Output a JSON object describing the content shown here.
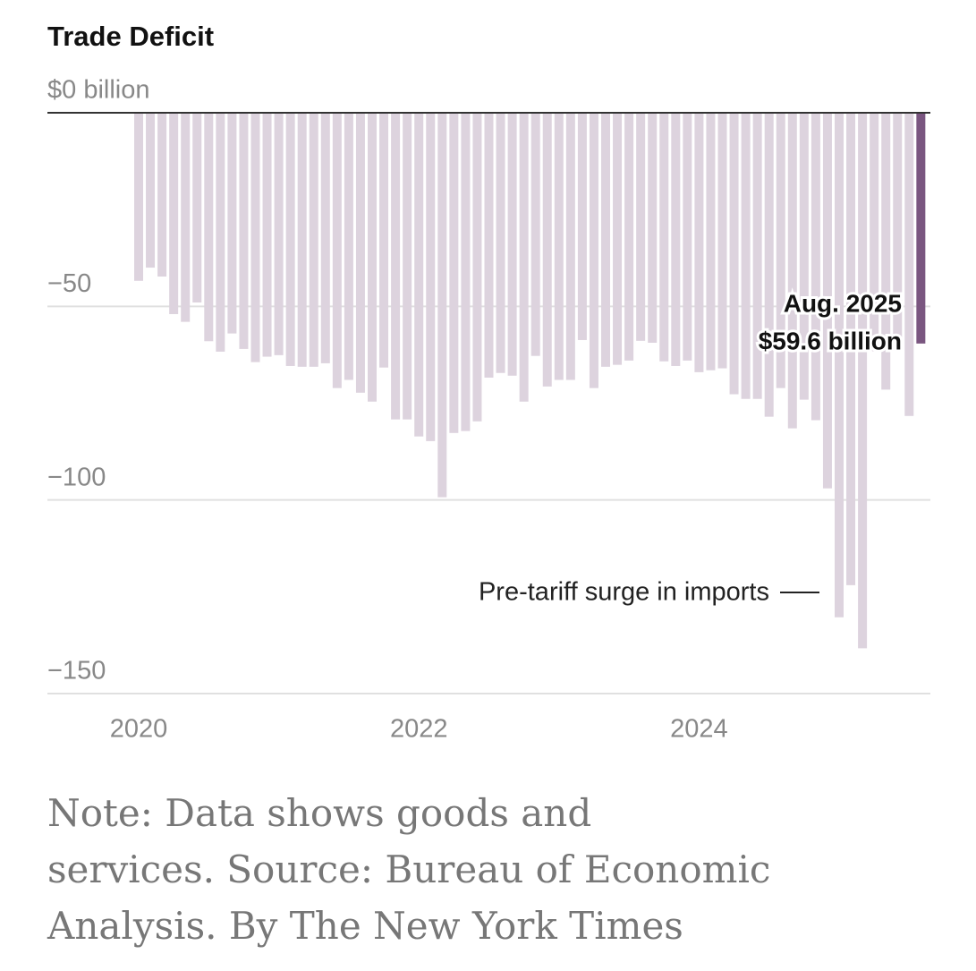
{
  "chart_data": {
    "type": "bar",
    "title": "Trade Deficit",
    "categories": [
      "2020",
      null,
      null,
      null,
      null,
      null,
      null,
      null,
      null,
      null,
      null,
      null,
      null,
      null,
      null,
      null,
      null,
      null,
      null,
      null,
      null,
      null,
      null,
      null,
      "2022",
      null,
      null,
      null,
      null,
      null,
      null,
      null,
      null,
      null,
      null,
      null,
      null,
      null,
      null,
      null,
      null,
      null,
      null,
      null,
      null,
      null,
      null,
      null,
      "2024",
      null,
      null,
      null,
      null,
      null,
      null,
      null,
      null,
      null,
      null,
      null,
      null,
      null,
      null,
      null,
      null,
      null,
      null,
      null
    ],
    "values": [
      -43.4,
      -40,
      -42.3,
      -52,
      -54,
      -49,
      -59,
      -61.7,
      -57,
      -61,
      -64.4,
      -63,
      -62.6,
      -65.4,
      -65.6,
      -65.6,
      -64.7,
      -71.1,
      -69,
      -72.3,
      -74.6,
      -65.8,
      -79.2,
      -79.2,
      -83.6,
      -84.8,
      -99.3,
      -82.7,
      -82.2,
      -79.7,
      -68.4,
      -67.2,
      -67.9,
      -74.6,
      -62.8,
      -70.7,
      -69,
      -69,
      -58.7,
      -71.1,
      -65.6,
      -65.1,
      -64,
      -58.9,
      -59.4,
      -64.2,
      -65.4,
      -64,
      -67,
      -66.5,
      -66,
      -72.7,
      -73.9,
      -73.9,
      -78.5,
      -71.1,
      -81.5,
      -74.1,
      -79.4,
      -97,
      -130.3,
      -122,
      -138.3,
      -61.6,
      -71.5,
      -59.1,
      -78.3,
      -59.6
    ],
    "color": "#ddd3de",
    "highlight": {
      "index": 67,
      "color": "#7a5680"
    },
    "ylim": [
      -150,
      0
    ],
    "yticks": [
      {
        "value": 0,
        "label": "$0 billion"
      },
      {
        "value": -50,
        "label": "−50"
      },
      {
        "value": -100,
        "label": "−100"
      },
      {
        "value": -150,
        "label": "−150"
      }
    ],
    "grid": true,
    "annotations": [
      "Aug. 2025",
      "$59.6 billion",
      "Pre-tariff surge in imports"
    ],
    "note": [
      "Note: Data shows goods and",
      "services.  Source: Bureau of Economic",
      "Analysis.  By The New York Times"
    ]
  }
}
